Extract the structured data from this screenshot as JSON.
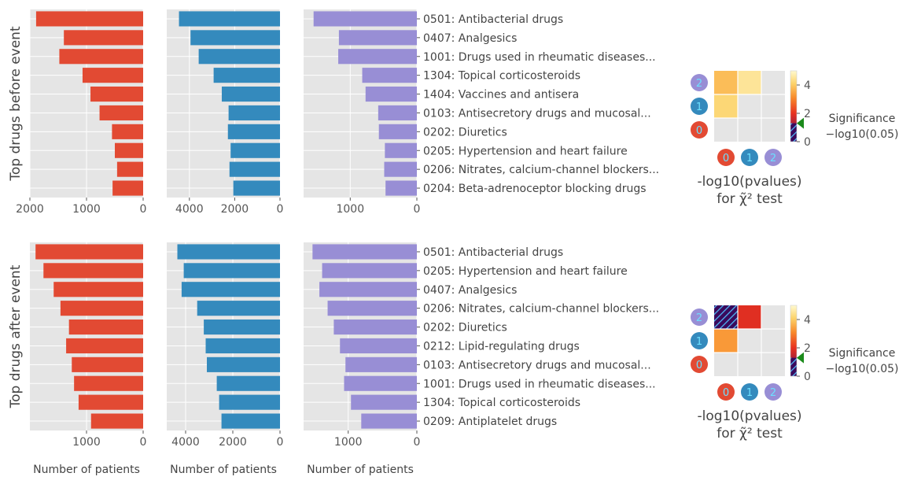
{
  "chart_data": {
    "type": "bar",
    "orientation": "horizontal",
    "x_axis": "inverted",
    "xlabel": "Number of patients",
    "grid": true,
    "group_colors": [
      "#e24a33",
      "#348abd",
      "#988ed5"
    ],
    "rows": [
      {
        "ylabel": "Top drugs before event",
        "categories": [
          "0501: Antibacterial drugs",
          "0407: Analgesics",
          "1001: Drugs used in rheumatic diseases...",
          "1304: Topical corticosteroids",
          "1404: Vaccines and antisera",
          "0103: Antisecretory drugs and mucosal...",
          "0202: Diuretics",
          "0205: Hypertension and heart failure",
          "0206: Nitrates, calcium-channel blockers...",
          "0204: Beta-adrenoceptor blocking drugs"
        ],
        "panels": [
          {
            "values": [
              1890,
              1400,
              1480,
              1070,
              930,
              770,
              550,
              500,
              460,
              540
            ],
            "xlim": [
              2000,
              0
            ],
            "ticks": [
              2000,
              1000,
              0
            ]
          },
          {
            "values": [
              4460,
              3950,
              3590,
              2930,
              2570,
              2270,
              2300,
              2180,
              2230,
              2060
            ],
            "xlim": [
              5000,
              0
            ],
            "ticks": [
              4000,
              2000,
              0
            ]
          },
          {
            "values": [
              1550,
              1170,
              1180,
              820,
              770,
              580,
              570,
              480,
              490,
              470
            ],
            "xlim": [
              1700,
              0
            ],
            "ticks": [
              1000,
              0
            ]
          }
        ],
        "heatmap": {
          "row_labels": [
            "2",
            "1",
            "0"
          ],
          "col_labels": [
            "0",
            "1",
            "2"
          ],
          "cells": [
            [
              3.8,
              4.5,
              null
            ],
            [
              4.2,
              null,
              null
            ],
            [
              null,
              null,
              null
            ]
          ],
          "hatched": [],
          "colorbar_ticks": [
            0,
            2,
            4
          ],
          "vmax": 5,
          "significance": 1.3,
          "xlabel_line1": "-log10(pvalues)",
          "xlabel_line2": "for χ̃² test",
          "significance_line1": "Significance",
          "significance_line2": "−log10(0.05)"
        }
      },
      {
        "ylabel": "Top drugs after event",
        "categories": [
          "0501: Antibacterial drugs",
          "0205: Hypertension and heart failure",
          "0407: Analgesics",
          "0206: Nitrates, calcium-channel blockers...",
          "0202: Diuretics",
          "0212: Lipid-regulating drugs",
          "0103: Antisecretory drugs and mucosal...",
          "1001: Drugs used in rheumatic diseases...",
          "1304: Topical corticosteroids",
          "0209: Antiplatelet drugs"
        ],
        "panels": [
          {
            "values": [
              1900,
              1760,
              1580,
              1460,
              1310,
              1360,
              1260,
              1220,
              1140,
              920
            ],
            "xlim": [
              2000,
              0
            ],
            "ticks": [
              1000,
              0
            ]
          },
          {
            "values": [
              4350,
              4080,
              4170,
              3510,
              3230,
              3150,
              3100,
              2680,
              2580,
              2480
            ],
            "xlim": [
              4800,
              0
            ],
            "ticks": [
              4000,
              2000,
              0
            ]
          },
          {
            "values": [
              1520,
              1380,
              1420,
              1300,
              1210,
              1120,
              1040,
              1060,
              960,
              810
            ],
            "xlim": [
              1650,
              0
            ],
            "ticks": [
              1000,
              0
            ]
          }
        ],
        "heatmap": {
          "row_labels": [
            "2",
            "1",
            "0"
          ],
          "col_labels": [
            "0",
            "1",
            "2"
          ],
          "cells": [
            [
              null,
              1.9,
              null
            ],
            [
              3.3,
              null,
              null
            ],
            [
              null,
              null,
              null
            ]
          ],
          "hatched": [
            [
              0,
              0
            ]
          ],
          "colorbar_ticks": [
            0,
            2,
            4
          ],
          "vmax": 5,
          "significance": 1.3,
          "xlabel_line1": "-log10(pvalues)",
          "xlabel_line2": "for χ̃² test",
          "significance_line1": "Significance",
          "significance_line2": "−log10(0.05)"
        }
      }
    ]
  }
}
